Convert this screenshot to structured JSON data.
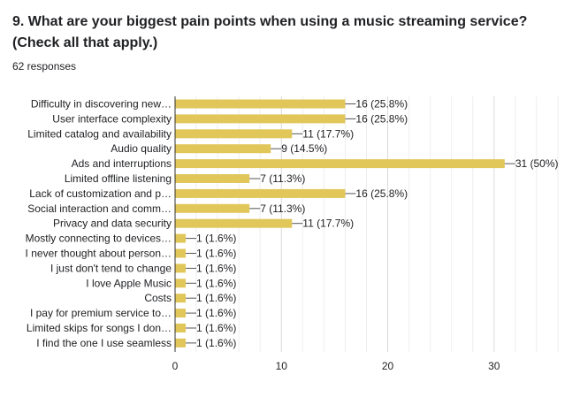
{
  "question": {
    "title": "9. What are your biggest pain points when using a music streaming service? (Check all that apply.)",
    "responses": "62 responses"
  },
  "colors": {
    "bar": "#e1c65a",
    "grid": "#e6e6e6",
    "axis": "#333333",
    "text": "#202124"
  },
  "chart_data": {
    "type": "bar",
    "orientation": "horizontal",
    "title": "",
    "xlabel": "",
    "ylabel": "",
    "xlim": [
      0,
      37
    ],
    "xticks": [
      0,
      10,
      20,
      30
    ],
    "grid": true,
    "categories": [
      "Difficulty in discovering new…",
      "User interface complexity",
      "Limited catalog and availability",
      "Audio quality",
      "Ads and interruptions",
      "Limited offline listening",
      "Lack of customization and p…",
      "Social interaction and comm…",
      "Privacy and data security",
      "Mostly connecting to devices…",
      "I never thought about person…",
      "I just don't tend to change",
      "I love Apple Music",
      "Costs",
      "I pay for premium service to…",
      "Limited skips for songs I don…",
      "I find the one I use seamless"
    ],
    "values": [
      16,
      16,
      11,
      9,
      31,
      7,
      16,
      7,
      11,
      1,
      1,
      1,
      1,
      1,
      1,
      1,
      1
    ],
    "data_labels": [
      "16 (25.8%)",
      "16 (25.8%)",
      "11 (17.7%)",
      "9 (14.5%)",
      "31 (50%)",
      "7 (11.3%)",
      "16 (25.8%)",
      "7 (11.3%)",
      "11 (17.7%)",
      "1 (1.6%)",
      "1 (1.6%)",
      "1 (1.6%)",
      "1 (1.6%)",
      "1 (1.6%)",
      "1 (1.6%)",
      "1 (1.6%)",
      "1 (1.6%)"
    ]
  }
}
